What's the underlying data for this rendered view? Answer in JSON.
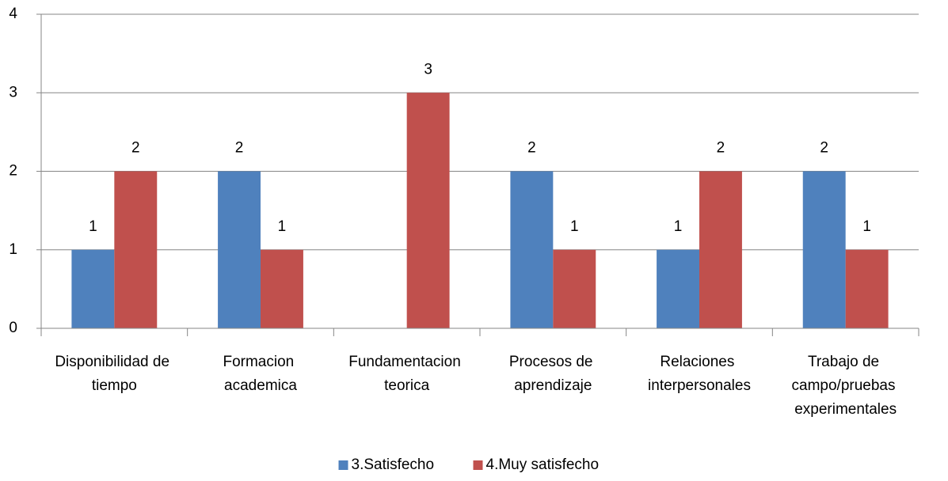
{
  "chart_data": {
    "type": "bar",
    "categories": [
      "Disponibilidad de tiempo",
      "Formacion academica",
      "Fundamentacion teorica",
      "Procesos de aprendizaje",
      "Relaciones interpersonales",
      "Trabajo de campo/pruebas experimentales"
    ],
    "series": [
      {
        "name": "3.Satisfecho",
        "color": "#4f81bd",
        "values": [
          1,
          2,
          null,
          2,
          1,
          2
        ]
      },
      {
        "name": "4.Muy satisfecho",
        "color": "#c0504d",
        "values": [
          2,
          1,
          3,
          1,
          2,
          1
        ]
      }
    ],
    "ylim": [
      0,
      4
    ],
    "yticks": [
      0,
      1,
      2,
      3,
      4
    ],
    "grid": true,
    "legend": "bottom"
  }
}
